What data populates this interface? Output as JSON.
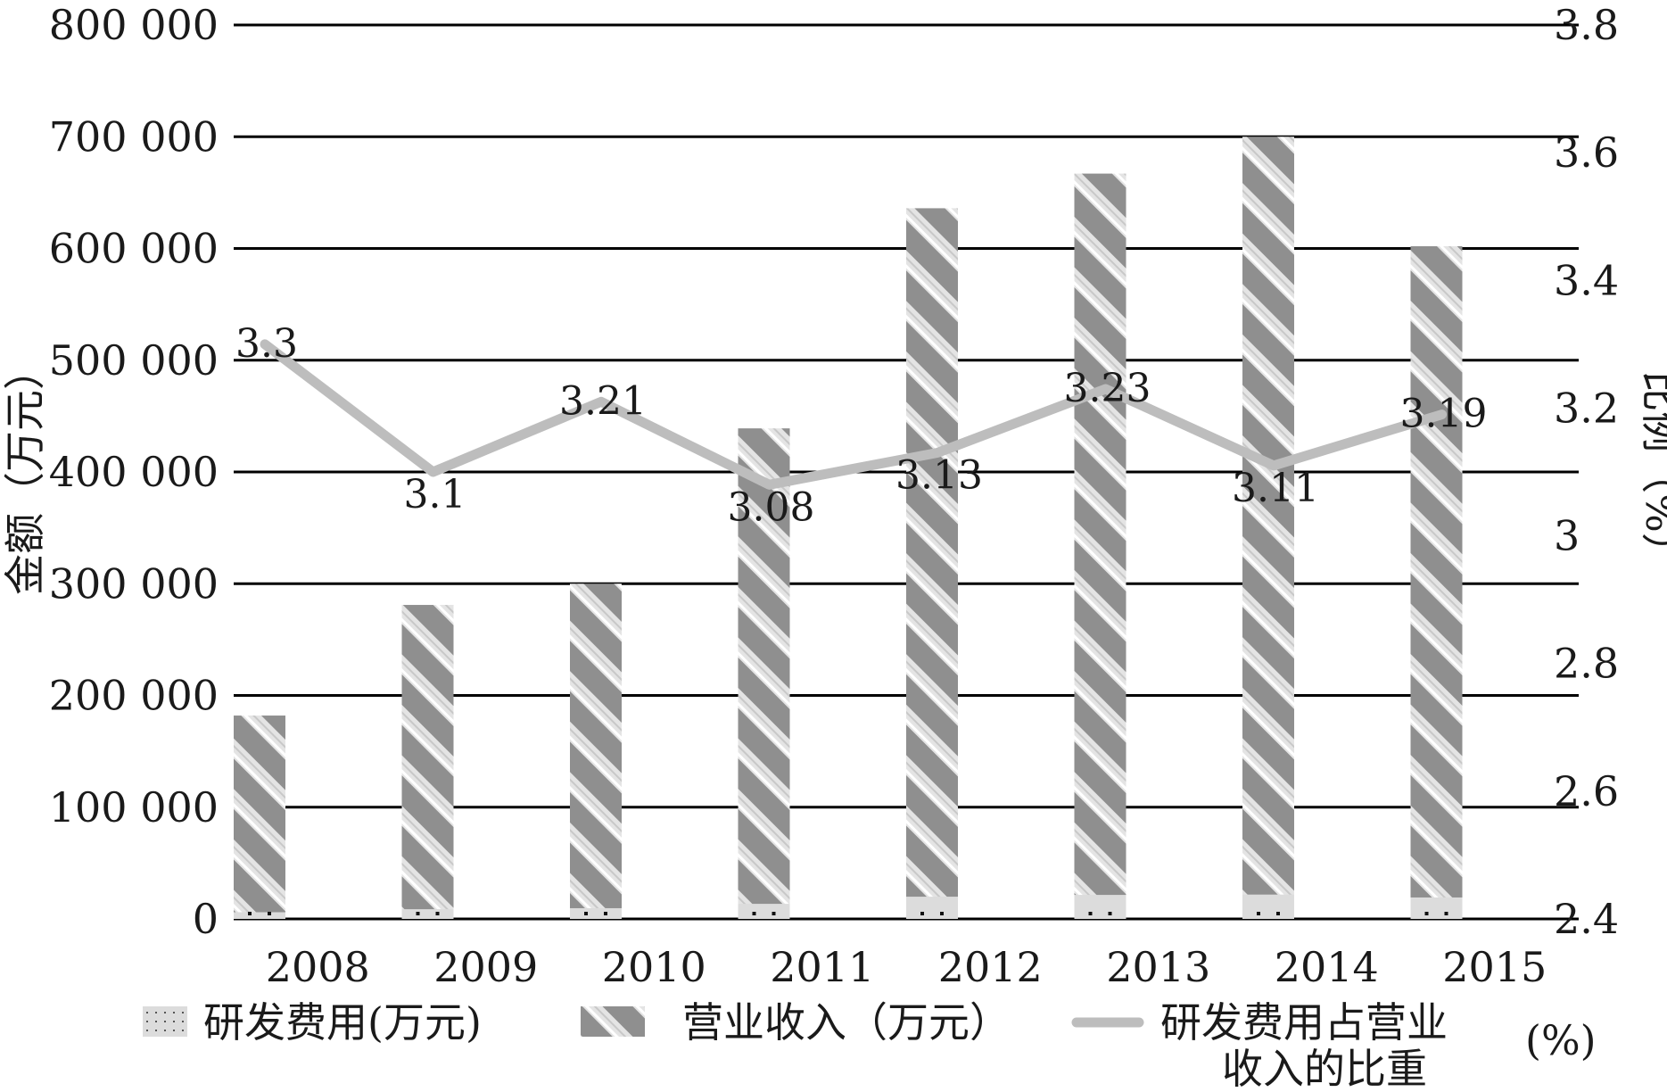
{
  "chart_data": {
    "type": "bar",
    "categories": [
      "2008",
      "2009",
      "2010",
      "2011",
      "2012",
      "2013",
      "2014",
      "2015"
    ],
    "series": [
      {
        "name": "研发费用(万元)",
        "axis": "left",
        "type": "bar",
        "values": [
          6000,
          8700,
          9600,
          13500,
          19900,
          21500,
          21800,
          19200
        ]
      },
      {
        "name": "营业收入（万元）",
        "axis": "left",
        "type": "bar",
        "values": [
          182000,
          281000,
          300000,
          439000,
          636000,
          667000,
          700000,
          602000
        ]
      },
      {
        "name": "研发费用占营业收入的比重(%)",
        "name_parts": [
          "研发费用占营业",
          "收入的比重",
          "(%)"
        ],
        "axis": "right",
        "type": "line",
        "values": [
          3.3,
          3.1,
          3.21,
          3.08,
          3.13,
          3.23,
          3.11,
          3.19
        ],
        "labels": [
          "3.3",
          "3.1",
          "3.21",
          "3.08",
          "3.13",
          "3.23",
          "3.11",
          "3.19"
        ]
      }
    ],
    "ylabel_left": "金额（万元）",
    "ylabel_right": "比例（%）",
    "ylim_left": [
      0,
      800000
    ],
    "ylim_right": [
      2.4,
      3.8
    ],
    "yticks_left": [
      "0",
      "100 000",
      "200 000",
      "300 000",
      "400 000",
      "500 000",
      "600 000",
      "700 000",
      "800 000"
    ],
    "yticks_right": [
      "2.4",
      "2.6",
      "2.8",
      "3",
      "3.2",
      "3.4",
      "3.6",
      "3.8"
    ],
    "grid": true,
    "legend_position": "bottom",
    "colors": {
      "revenue_dark": "#8f8f8f",
      "revenue_light": "#e4e4e4",
      "rd_fill": "#dcdcdc",
      "rd_dot": "#111111",
      "line": "#bdbdbd",
      "grid": "#000000"
    }
  }
}
